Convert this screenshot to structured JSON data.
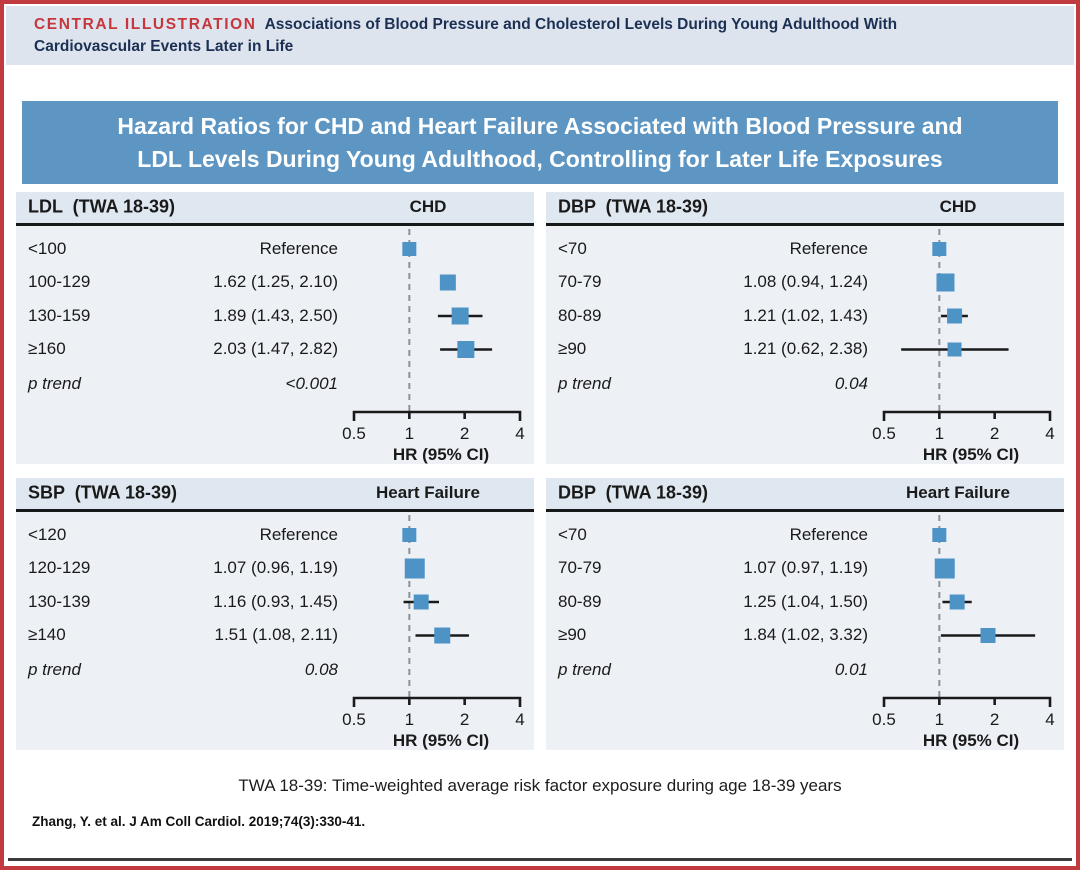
{
  "figure": {
    "kicker": "CENTRAL ILLUSTRATION",
    "title": "Associations of Blood Pressure and Cholesterol Levels During Young Adulthood With Cardiovascular Events Later in Life",
    "banner": "Hazard Ratios for CHD and Heart Failure Associated with Blood Pressure and LDL Levels During Young Adulthood, Controlling for Later Life Exposures",
    "footnote": "TWA 18-39: Time-weighted average risk factor exposure during age 18-39 years",
    "citation": "Zhang, Y. et al. J Am Coll Cardiol. 2019;74(3):330-41."
  },
  "colors": {
    "red_border": "#c13a40",
    "kicker_red": "#c6363c",
    "navy": "#1c3054",
    "banner_blue": "#5e96c3",
    "strip_bg": "#dde4ee",
    "panel_bg": "#edf1f6",
    "band_bg": "#dfe8f1",
    "marker_blue": "#4e93c6",
    "refline_gray": "#8b9299",
    "ink": "#1a1a1a"
  },
  "chart_data": [
    {
      "type": "forest",
      "exposure": "LDL  (TWA 18-39)",
      "outcome": "CHD",
      "axis": {
        "scale": "log2",
        "range": [
          0.5,
          4
        ],
        "ticks": [
          0.5,
          1,
          2,
          4
        ],
        "tick_labels": [
          "0.5",
          "1",
          "2",
          "4"
        ],
        "label": "HR (95% CI)",
        "refline": 1
      },
      "rows": [
        {
          "category": "<100",
          "display": "Reference",
          "hr": 1.0,
          "ci": null,
          "marker": 14,
          "whiskers_shown": false
        },
        {
          "category": "100-129",
          "display": "1.62 (1.25, 2.10)",
          "hr": 1.62,
          "ci": [
            1.25,
            2.1
          ],
          "marker": 16,
          "whiskers_shown": false
        },
        {
          "category": "130-159",
          "display": "1.89 (1.43, 2.50)",
          "hr": 1.89,
          "ci": [
            1.43,
            2.5
          ],
          "marker": 17,
          "whiskers_shown": true
        },
        {
          "category": "≥160",
          "display": "2.03 (1.47, 2.82)",
          "hr": 2.03,
          "ci": [
            1.47,
            2.82
          ],
          "marker": 17,
          "whiskers_shown": true
        }
      ],
      "p_trend_label": "p trend",
      "p_trend": "<0.001"
    },
    {
      "type": "forest",
      "exposure": "DBP  (TWA 18-39)",
      "outcome": "CHD",
      "axis": {
        "scale": "log2",
        "range": [
          0.5,
          4
        ],
        "ticks": [
          0.5,
          1,
          2,
          4
        ],
        "tick_labels": [
          "0.5",
          "1",
          "2",
          "4"
        ],
        "label": "HR (95% CI)",
        "refline": 1
      },
      "rows": [
        {
          "category": "<70",
          "display": "Reference",
          "hr": 1.0,
          "ci": null,
          "marker": 14,
          "whiskers_shown": false
        },
        {
          "category": "70-79",
          "display": "1.08 (0.94, 1.24)",
          "hr": 1.08,
          "ci": [
            0.94,
            1.24
          ],
          "marker": 18,
          "whiskers_shown": false
        },
        {
          "category": "80-89",
          "display": "1.21 (1.02, 1.43)",
          "hr": 1.21,
          "ci": [
            1.02,
            1.43
          ],
          "marker": 15,
          "whiskers_shown": true
        },
        {
          "category": "≥90",
          "display": "1.21 (0.62, 2.38)",
          "hr": 1.21,
          "ci": [
            0.62,
            2.38
          ],
          "marker": 14,
          "whiskers_shown": true
        }
      ],
      "p_trend_label": "p trend",
      "p_trend": "0.04"
    },
    {
      "type": "forest",
      "exposure": "SBP  (TWA 18-39)",
      "outcome": "Heart Failure",
      "axis": {
        "scale": "log2",
        "range": [
          0.5,
          4
        ],
        "ticks": [
          0.5,
          1,
          2,
          4
        ],
        "tick_labels": [
          "0.5",
          "1",
          "2",
          "4"
        ],
        "label": "HR (95% CI)",
        "refline": 1
      },
      "rows": [
        {
          "category": "<120",
          "display": "Reference",
          "hr": 1.0,
          "ci": null,
          "marker": 14,
          "whiskers_shown": false
        },
        {
          "category": "120-129",
          "display": "1.07 (0.96, 1.19)",
          "hr": 1.07,
          "ci": [
            0.96,
            1.19
          ],
          "marker": 20,
          "whiskers_shown": false
        },
        {
          "category": "130-139",
          "display": "1.16 (0.93, 1.45)",
          "hr": 1.16,
          "ci": [
            0.93,
            1.45
          ],
          "marker": 15,
          "whiskers_shown": true
        },
        {
          "category": "≥140",
          "display": "1.51 (1.08, 2.11)",
          "hr": 1.51,
          "ci": [
            1.08,
            2.11
          ],
          "marker": 16,
          "whiskers_shown": true
        }
      ],
      "p_trend_label": "p trend",
      "p_trend": "0.08"
    },
    {
      "type": "forest",
      "exposure": "DBP  (TWA 18-39)",
      "outcome": "Heart Failure",
      "axis": {
        "scale": "log2",
        "range": [
          0.5,
          4
        ],
        "ticks": [
          0.5,
          1,
          2,
          4
        ],
        "tick_labels": [
          "0.5",
          "1",
          "2",
          "4"
        ],
        "label": "HR (95% CI)",
        "refline": 1
      },
      "rows": [
        {
          "category": "<70",
          "display": "Reference",
          "hr": 1.0,
          "ci": null,
          "marker": 14,
          "whiskers_shown": false
        },
        {
          "category": "70-79",
          "display": "1.07 (0.97, 1.19)",
          "hr": 1.07,
          "ci": [
            0.97,
            1.19
          ],
          "marker": 20,
          "whiskers_shown": false
        },
        {
          "category": "80-89",
          "display": "1.25 (1.04, 1.50)",
          "hr": 1.25,
          "ci": [
            1.04,
            1.5
          ],
          "marker": 15,
          "whiskers_shown": true
        },
        {
          "category": "≥90",
          "display": "1.84 (1.02, 3.32)",
          "hr": 1.84,
          "ci": [
            1.02,
            3.32
          ],
          "marker": 15,
          "whiskers_shown": true
        }
      ],
      "p_trend_label": "p trend",
      "p_trend": "0.01"
    }
  ]
}
